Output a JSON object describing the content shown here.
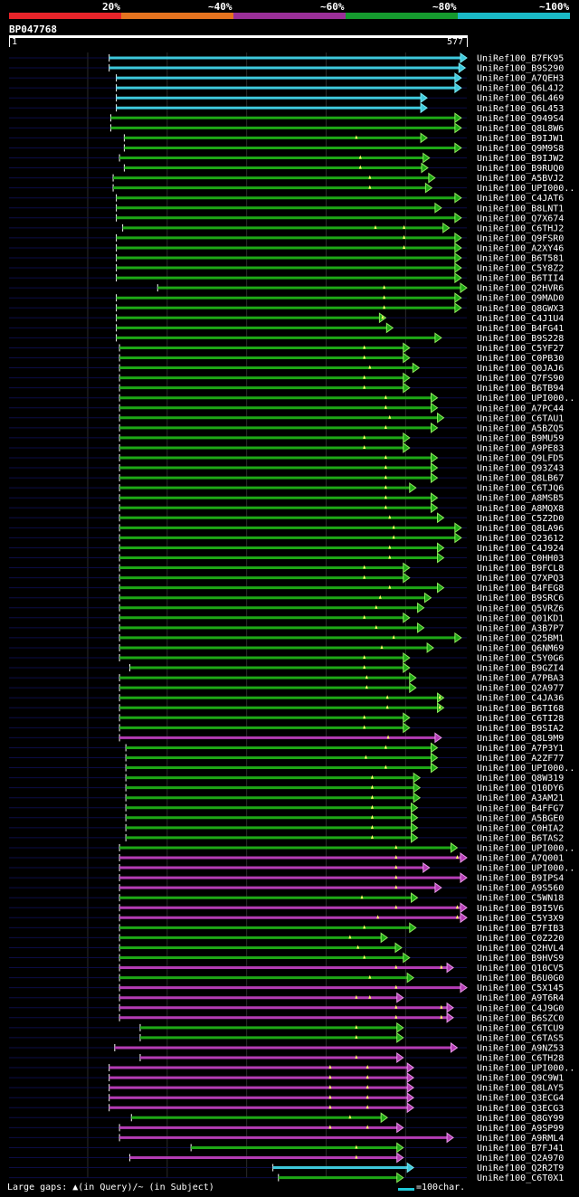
{
  "scale": {
    "labels": [
      "20%",
      "~40%",
      "~60%",
      "~80%",
      "~100%"
    ],
    "colors": [
      "#e8242a",
      "#e5731f",
      "#9a2f98",
      "#159a2e",
      "#1ab9c6"
    ]
  },
  "query": {
    "id": "BP047768",
    "start": "1",
    "end": "577",
    "length": 577
  },
  "palette": {
    "cyan": "#3ec8dc",
    "green": "#1ea816",
    "magenta": "#b43cb4",
    "arrow_green": "#8ee85c",
    "arrow_cyan": "#78e8f0",
    "arrow_magenta": "#e898e8",
    "gap_mark": "#ffff66",
    "background_line": "#0c0c46"
  },
  "hits": [
    {
      "label": "UniRef100_B7FK95",
      "c": "cyan",
      "s": 127,
      "e": 577,
      "gaps": []
    },
    {
      "label": "UniRef100_B9S290",
      "c": "cyan",
      "s": 127,
      "e": 575,
      "gaps": []
    },
    {
      "label": "UniRef100_A7QEH3",
      "c": "cyan",
      "s": 136,
      "e": 570,
      "gaps": []
    },
    {
      "label": "UniRef100_Q6L4J2",
      "c": "cyan",
      "s": 136,
      "e": 570,
      "gaps": []
    },
    {
      "label": "UniRef100_Q6L469",
      "c": "cyan",
      "s": 136,
      "e": 527,
      "gaps": []
    },
    {
      "label": "UniRef100_Q6L453",
      "c": "cyan",
      "s": 136,
      "e": 527,
      "gaps": []
    },
    {
      "label": "UniRef100_Q949S4",
      "c": "green",
      "s": 129,
      "e": 570,
      "gaps": []
    },
    {
      "label": "UniRef100_Q8L8W6",
      "c": "green",
      "s": 129,
      "e": 570,
      "gaps": []
    },
    {
      "label": "UniRef100_B9IJW1",
      "c": "green",
      "s": 146,
      "e": 527,
      "gaps": [
        438
      ]
    },
    {
      "label": "UniRef100_Q9M9S8",
      "c": "green",
      "s": 146,
      "e": 570,
      "gaps": []
    },
    {
      "label": "UniRef100_B9IJW2",
      "c": "green",
      "s": 140,
      "e": 530,
      "gaps": [
        443
      ]
    },
    {
      "label": "UniRef100_B9RUQ0",
      "c": "green",
      "s": 146,
      "e": 528,
      "gaps": [
        443
      ]
    },
    {
      "label": "UniRef100_A5BVJ2",
      "c": "green",
      "s": 132,
      "e": 537,
      "gaps": [
        455
      ]
    },
    {
      "label": "UniRef100_UPI000..",
      "c": "green",
      "s": 132,
      "e": 533,
      "gaps": [
        455
      ]
    },
    {
      "label": "UniRef100_C4JAT6",
      "c": "green",
      "s": 136,
      "e": 570,
      "gaps": []
    },
    {
      "label": "UniRef100_B8LNT1",
      "c": "green",
      "s": 136,
      "e": 545,
      "gaps": []
    },
    {
      "label": "UniRef100_Q7X674",
      "c": "green",
      "s": 136,
      "e": 570,
      "gaps": []
    },
    {
      "label": "UniRef100_C6THJ2",
      "c": "green",
      "s": 144,
      "e": 555,
      "gaps": [
        498,
        462
      ]
    },
    {
      "label": "UniRef100_Q9FSR0",
      "c": "green",
      "s": 136,
      "e": 570,
      "gaps": [
        498
      ]
    },
    {
      "label": "UniRef100_A2XY46",
      "c": "green",
      "s": 136,
      "e": 570,
      "gaps": [
        498
      ]
    },
    {
      "label": "UniRef100_B6T581",
      "c": "green",
      "s": 136,
      "e": 570,
      "gaps": []
    },
    {
      "label": "UniRef100_C5Y8Z2",
      "c": "green",
      "s": 136,
      "e": 570,
      "gaps": []
    },
    {
      "label": "UniRef100_B6TII4",
      "c": "green",
      "s": 136,
      "e": 570,
      "gaps": []
    },
    {
      "label": "UniRef100_Q2HVR6",
      "c": "green",
      "s": 188,
      "e": 577,
      "gaps": [
        473
      ]
    },
    {
      "label": "UniRef100_Q9MAD0",
      "c": "green",
      "s": 136,
      "e": 570,
      "gaps": [
        473
      ]
    },
    {
      "label": "UniRef100_Q8GWX3",
      "c": "green",
      "s": 136,
      "e": 570,
      "gaps": [
        473
      ]
    },
    {
      "label": "UniRef100_C4J1U4",
      "c": "green",
      "s": 136,
      "e": 475,
      "gaps": [
        471
      ]
    },
    {
      "label": "UniRef100_B4FG41",
      "c": "green",
      "s": 136,
      "e": 484,
      "gaps": []
    },
    {
      "label": "UniRef100_B9S228",
      "c": "green",
      "s": 136,
      "e": 545,
      "gaps": []
    },
    {
      "label": "UniRef100_C5YF27",
      "c": "green",
      "s": 140,
      "e": 505,
      "gaps": [
        448
      ]
    },
    {
      "label": "UniRef100_C0PB30",
      "c": "green",
      "s": 140,
      "e": 505,
      "gaps": [
        448
      ]
    },
    {
      "label": "UniRef100_Q0JAJ6",
      "c": "green",
      "s": 140,
      "e": 517,
      "gaps": [
        455
      ]
    },
    {
      "label": "UniRef100_Q7FS90",
      "c": "green",
      "s": 140,
      "e": 505,
      "gaps": [
        448
      ]
    },
    {
      "label": "UniRef100_B6TB94",
      "c": "green",
      "s": 140,
      "e": 505,
      "gaps": [
        448
      ]
    },
    {
      "label": "UniRef100_UPI000..",
      "c": "green",
      "s": 140,
      "e": 540,
      "gaps": [
        475
      ]
    },
    {
      "label": "UniRef100_A7PC44",
      "c": "green",
      "s": 140,
      "e": 540,
      "gaps": [
        475
      ]
    },
    {
      "label": "UniRef100_C6TAU1",
      "c": "green",
      "s": 140,
      "e": 548,
      "gaps": [
        480
      ]
    },
    {
      "label": "UniRef100_A5BZQ5",
      "c": "green",
      "s": 140,
      "e": 540,
      "gaps": [
        475
      ]
    },
    {
      "label": "UniRef100_B9MU59",
      "c": "green",
      "s": 140,
      "e": 505,
      "gaps": [
        448
      ]
    },
    {
      "label": "UniRef100_A9PE83",
      "c": "green",
      "s": 140,
      "e": 505,
      "gaps": [
        448
      ]
    },
    {
      "label": "UniRef100_Q9LFD5",
      "c": "green",
      "s": 140,
      "e": 540,
      "gaps": [
        475
      ]
    },
    {
      "label": "UniRef100_Q93Z43",
      "c": "green",
      "s": 140,
      "e": 540,
      "gaps": [
        475
      ]
    },
    {
      "label": "UniRef100_Q8LB67",
      "c": "green",
      "s": 140,
      "e": 540,
      "gaps": [
        475
      ]
    },
    {
      "label": "UniRef100_C6TJQ6",
      "c": "green",
      "s": 140,
      "e": 513,
      "gaps": [
        475
      ]
    },
    {
      "label": "UniRef100_A8MSB5",
      "c": "green",
      "s": 140,
      "e": 540,
      "gaps": [
        475
      ]
    },
    {
      "label": "UniRef100_A8MQX8",
      "c": "green",
      "s": 140,
      "e": 540,
      "gaps": [
        475
      ]
    },
    {
      "label": "UniRef100_C5Z2D0",
      "c": "green",
      "s": 140,
      "e": 548,
      "gaps": [
        480
      ]
    },
    {
      "label": "UniRef100_Q8LA96",
      "c": "green",
      "s": 140,
      "e": 570,
      "gaps": [
        485
      ]
    },
    {
      "label": "UniRef100_O23612",
      "c": "green",
      "s": 140,
      "e": 570,
      "gaps": [
        485
      ]
    },
    {
      "label": "UniRef100_C4J924",
      "c": "green",
      "s": 140,
      "e": 548,
      "gaps": [
        480
      ]
    },
    {
      "label": "UniRef100_C0HH03",
      "c": "green",
      "s": 140,
      "e": 548,
      "gaps": [
        480
      ]
    },
    {
      "label": "UniRef100_B9FCL8",
      "c": "green",
      "s": 140,
      "e": 505,
      "gaps": [
        448
      ]
    },
    {
      "label": "UniRef100_Q7XPQ3",
      "c": "green",
      "s": 140,
      "e": 505,
      "gaps": [
        448
      ]
    },
    {
      "label": "UniRef100_B4FEG8",
      "c": "green",
      "s": 140,
      "e": 548,
      "gaps": [
        480
      ]
    },
    {
      "label": "UniRef100_B9SRC6",
      "c": "green",
      "s": 140,
      "e": 532,
      "gaps": [
        468
      ]
    },
    {
      "label": "UniRef100_Q5VRZ6",
      "c": "green",
      "s": 140,
      "e": 523,
      "gaps": [
        463
      ]
    },
    {
      "label": "UniRef100_Q01KD1",
      "c": "green",
      "s": 140,
      "e": 505,
      "gaps": [
        448
      ]
    },
    {
      "label": "UniRef100_A3B7P7",
      "c": "green",
      "s": 140,
      "e": 523,
      "gaps": [
        463
      ]
    },
    {
      "label": "UniRef100_Q25BM1",
      "c": "green",
      "s": 140,
      "e": 570,
      "gaps": [
        485
      ]
    },
    {
      "label": "UniRef100_Q6NM69",
      "c": "green",
      "s": 140,
      "e": 535,
      "gaps": [
        470
      ]
    },
    {
      "label": "UniRef100_C5Y0G6",
      "c": "green",
      "s": 140,
      "e": 505,
      "gaps": [
        448
      ]
    },
    {
      "label": "UniRef100_B9GZI4",
      "c": "green",
      "s": 153,
      "e": 505,
      "gaps": [
        448
      ]
    },
    {
      "label": "UniRef100_A7PBA3",
      "c": "green",
      "s": 140,
      "e": 513,
      "gaps": [
        451
      ]
    },
    {
      "label": "UniRef100_Q2A977",
      "c": "green",
      "s": 140,
      "e": 513,
      "gaps": [
        451
      ]
    },
    {
      "label": "UniRef100_C4JA36",
      "c": "green",
      "s": 140,
      "e": 548,
      "gaps": [
        477,
        543
      ]
    },
    {
      "label": "UniRef100_B6TI68",
      "c": "green",
      "s": 140,
      "e": 548,
      "gaps": [
        477,
        543
      ]
    },
    {
      "label": "UniRef100_C6TI28",
      "c": "green",
      "s": 140,
      "e": 505,
      "gaps": [
        448
      ]
    },
    {
      "label": "UniRef100_B9SIA2",
      "c": "green",
      "s": 140,
      "e": 505,
      "gaps": [
        448
      ]
    },
    {
      "label": "UniRef100_Q8L9M9",
      "c": "magenta",
      "s": 140,
      "e": 545,
      "gaps": [
        478
      ]
    },
    {
      "label": "UniRef100_A7P3Y1",
      "c": "green",
      "s": 148,
      "e": 540,
      "gaps": [
        475
      ]
    },
    {
      "label": "UniRef100_A2ZF77",
      "c": "green",
      "s": 148,
      "e": 540,
      "gaps": [
        450
      ]
    },
    {
      "label": "UniRef100_UPI000..",
      "c": "green",
      "s": 148,
      "e": 540,
      "gaps": [
        475
      ]
    },
    {
      "label": "UniRef100_Q8W319",
      "c": "green",
      "s": 148,
      "e": 518,
      "gaps": [
        458
      ]
    },
    {
      "label": "UniRef100_Q10DY6",
      "c": "green",
      "s": 148,
      "e": 518,
      "gaps": [
        458
      ]
    },
    {
      "label": "UniRef100_A3AM21",
      "c": "green",
      "s": 148,
      "e": 518,
      "gaps": [
        458
      ]
    },
    {
      "label": "UniRef100_B4FFG7",
      "c": "green",
      "s": 148,
      "e": 515,
      "gaps": [
        458
      ]
    },
    {
      "label": "UniRef100_A5BGE0",
      "c": "green",
      "s": 148,
      "e": 515,
      "gaps": [
        458
      ]
    },
    {
      "label": "UniRef100_C0HIA2",
      "c": "green",
      "s": 148,
      "e": 515,
      "gaps": [
        458
      ]
    },
    {
      "label": "UniRef100_B6TAS2",
      "c": "green",
      "s": 148,
      "e": 515,
      "gaps": [
        458
      ]
    },
    {
      "label": "UniRef100_UPI000..",
      "c": "green",
      "s": 140,
      "e": 565,
      "gaps": [
        488
      ]
    },
    {
      "label": "UniRef100_A7Q001",
      "c": "magenta",
      "s": 140,
      "e": 577,
      "gaps": [
        488,
        565
      ]
    },
    {
      "label": "UniRef100_UPI000..",
      "c": "magenta",
      "s": 140,
      "e": 530,
      "gaps": [
        488
      ]
    },
    {
      "label": "UniRef100_B9IPS4",
      "c": "magenta",
      "s": 140,
      "e": 577,
      "gaps": [
        488
      ]
    },
    {
      "label": "UniRef100_A9S560",
      "c": "magenta",
      "s": 140,
      "e": 545,
      "gaps": [
        488
      ]
    },
    {
      "label": "UniRef100_C5WN18",
      "c": "green",
      "s": 140,
      "e": 515,
      "gaps": [
        445
      ]
    },
    {
      "label": "UniRef100_B9I5V6",
      "c": "magenta",
      "s": 140,
      "e": 577,
      "gaps": [
        488,
        565
      ]
    },
    {
      "label": "UniRef100_C5Y3X9",
      "c": "magenta",
      "s": 140,
      "e": 577,
      "gaps": [
        465,
        565
      ]
    },
    {
      "label": "UniRef100_B7FIB3",
      "c": "green",
      "s": 140,
      "e": 513,
      "gaps": [
        448
      ]
    },
    {
      "label": "UniRef100_C0Z220",
      "c": "green",
      "s": 140,
      "e": 477,
      "gaps": [
        430
      ]
    },
    {
      "label": "UniRef100_Q2HVL4",
      "c": "green",
      "s": 140,
      "e": 495,
      "gaps": [
        440
      ]
    },
    {
      "label": "UniRef100_B9HVS9",
      "c": "green",
      "s": 140,
      "e": 505,
      "gaps": [
        448
      ]
    },
    {
      "label": "UniRef100_Q10CV5",
      "c": "magenta",
      "s": 140,
      "e": 560,
      "gaps": [
        488,
        545
      ]
    },
    {
      "label": "UniRef100_B6U0G0",
      "c": "green",
      "s": 140,
      "e": 510,
      "gaps": [
        455
      ]
    },
    {
      "label": "UniRef100_C5X145",
      "c": "magenta",
      "s": 140,
      "e": 577,
      "gaps": [
        488
      ]
    },
    {
      "label": "UniRef100_A9T6R4",
      "c": "magenta",
      "s": 140,
      "e": 497,
      "gaps": [
        438,
        455
      ]
    },
    {
      "label": "UniRef100_C4J9G0",
      "c": "magenta",
      "s": 140,
      "e": 560,
      "gaps": [
        488,
        545
      ]
    },
    {
      "label": "UniRef100_B6SZC0",
      "c": "magenta",
      "s": 140,
      "e": 560,
      "gaps": [
        488,
        545
      ]
    },
    {
      "label": "UniRef100_C6TCU9",
      "c": "green",
      "s": 166,
      "e": 497,
      "gaps": [
        438
      ]
    },
    {
      "label": "UniRef100_C6TAS5",
      "c": "green",
      "s": 166,
      "e": 497,
      "gaps": [
        438
      ]
    },
    {
      "label": "UniRef100_A9NZ53",
      "c": "magenta",
      "s": 134,
      "e": 565,
      "gaps": []
    },
    {
      "label": "UniRef100_C6TH28",
      "c": "magenta",
      "s": 166,
      "e": 497,
      "gaps": [
        438
      ]
    },
    {
      "label": "UniRef100_UPI000..",
      "c": "magenta",
      "s": 127,
      "e": 510,
      "gaps": [
        405,
        452
      ]
    },
    {
      "label": "UniRef100_Q9C9W1",
      "c": "magenta",
      "s": 127,
      "e": 510,
      "gaps": [
        405,
        452
      ]
    },
    {
      "label": "UniRef100_Q8LAY5",
      "c": "magenta",
      "s": 127,
      "e": 510,
      "gaps": [
        405,
        452
      ]
    },
    {
      "label": "UniRef100_Q3ECG4",
      "c": "magenta",
      "s": 127,
      "e": 510,
      "gaps": [
        405,
        452
      ]
    },
    {
      "label": "UniRef100_Q3ECG3",
      "c": "magenta",
      "s": 127,
      "e": 510,
      "gaps": [
        405,
        452
      ]
    },
    {
      "label": "UniRef100_Q8GY99",
      "c": "green",
      "s": 155,
      "e": 477,
      "gaps": [
        430
      ]
    },
    {
      "label": "UniRef100_A9SP99",
      "c": "magenta",
      "s": 140,
      "e": 497,
      "gaps": [
        405,
        452
      ]
    },
    {
      "label": "UniRef100_A9RML4",
      "c": "magenta",
      "s": 140,
      "e": 560,
      "gaps": []
    },
    {
      "label": "UniRef100_B7FJ41",
      "c": "green",
      "s": 230,
      "e": 497,
      "gaps": [
        438
      ]
    },
    {
      "label": "UniRef100_Q2A970",
      "c": "magenta",
      "s": 153,
      "e": 497,
      "gaps": [
        438
      ]
    },
    {
      "label": "UniRef100_Q2R2T9",
      "c": "cyan",
      "s": 333,
      "e": 510,
      "gaps": []
    },
    {
      "label": "UniRef100_C6T0X1",
      "c": "green",
      "s": 340,
      "e": 497,
      "gaps": []
    }
  ],
  "footer": {
    "gaps_note": "Large gaps: ▲(in Query)/~ (in Subject)",
    "legend_note": "=100char."
  }
}
